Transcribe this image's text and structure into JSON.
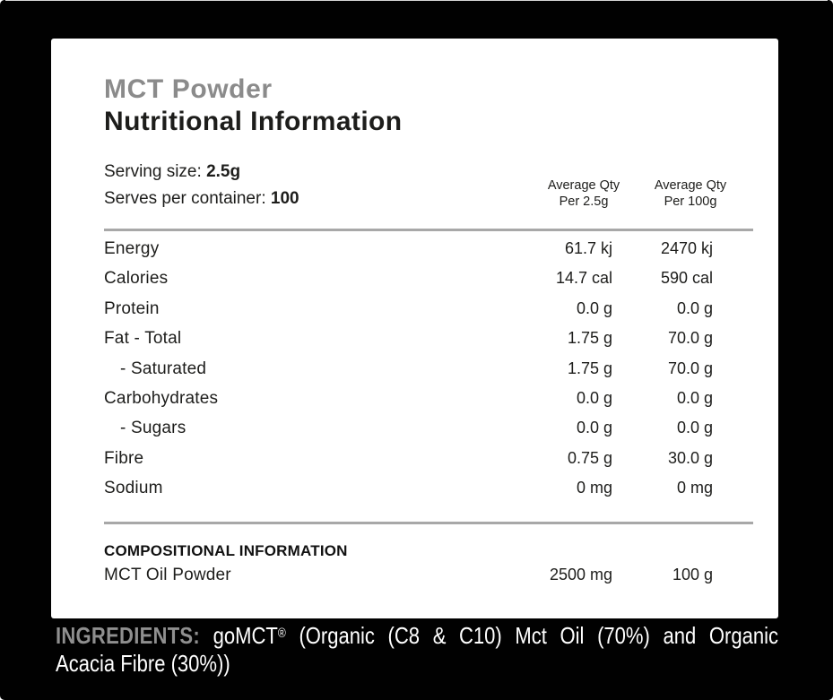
{
  "colors": {
    "background": "#010101",
    "panel": "#ffffff",
    "product_title": "#8b8b8b",
    "text": "#1d1d1b",
    "divider": "#a8a8a8",
    "ingredients_label": "#8f8f8f",
    "ingredients_text": "#ffffff"
  },
  "header": {
    "product": "MCT Powder",
    "title": "Nutritional Information"
  },
  "serving": {
    "size_label": "Serving size:",
    "size_value": "2.5g",
    "container_label": "Serves per container:",
    "container_value": "100"
  },
  "columns": [
    {
      "line1": "Average Qty",
      "line2": "Per 2.5g"
    },
    {
      "line1": "Average Qty",
      "line2": "Per 100g"
    }
  ],
  "nutrition_rows": [
    {
      "label": "Energy",
      "indent": false,
      "per_serve": "61.7 kj",
      "per_100": "2470 kj"
    },
    {
      "label": "Calories",
      "indent": false,
      "per_serve": "14.7 cal",
      "per_100": "590 cal"
    },
    {
      "label": "Protein",
      "indent": false,
      "per_serve": "0.0 g",
      "per_100": "0.0 g"
    },
    {
      "label": "Fat - Total",
      "indent": false,
      "per_serve": "1.75 g",
      "per_100": "70.0 g"
    },
    {
      "label": "- Saturated",
      "indent": true,
      "per_serve": "1.75 g",
      "per_100": "70.0 g"
    },
    {
      "label": "Carbohydrates",
      "indent": false,
      "per_serve": "0.0 g",
      "per_100": "0.0 g"
    },
    {
      "label": "- Sugars",
      "indent": true,
      "per_serve": "0.0 g",
      "per_100": "0.0 g"
    },
    {
      "label": "Fibre",
      "indent": false,
      "per_serve": "0.75 g",
      "per_100": "30.0 g"
    },
    {
      "label": "Sodium",
      "indent": false,
      "per_serve": "0 mg",
      "per_100": "0 mg"
    }
  ],
  "compositional": {
    "heading": "COMPOSITIONAL INFORMATION",
    "rows": [
      {
        "label": "MCT Oil Powder",
        "indent": false,
        "per_serve": "2500 mg",
        "per_100": "100 g"
      }
    ]
  },
  "ingredients": {
    "label": "INGREDIENTS:",
    "brand": "goMCT",
    "reg": "®",
    "rest": "(Organic (C8 & C10) Mct Oil (70%) and Organic",
    "line2": "Acacia Fibre (30%))"
  }
}
